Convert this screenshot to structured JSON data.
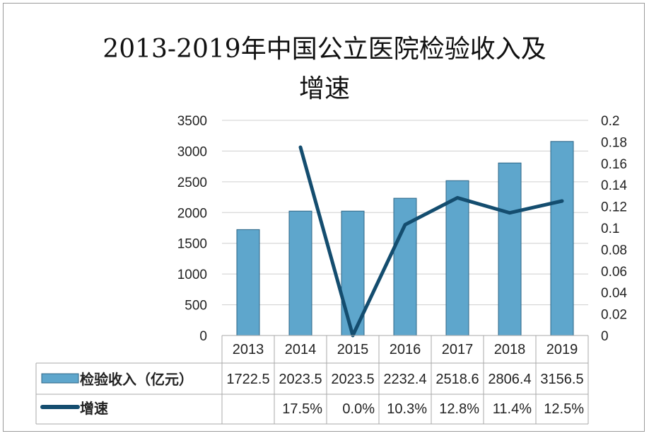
{
  "chart_data": {
    "type": "bar+line",
    "title_line1": "2013-2019年中国公立医院检验收入及",
    "title_line2": "增速",
    "categories": [
      "2013",
      "2014",
      "2015",
      "2016",
      "2017",
      "2018",
      "2019"
    ],
    "series": [
      {
        "name": "检验收入（亿元）",
        "type": "bar",
        "axis": "left",
        "values": [
          1722.5,
          2023.5,
          2023.5,
          2232.4,
          2518.6,
          2806.4,
          3156.5
        ],
        "labels": [
          "1722.5",
          "2023.5",
          "2023.5",
          "2232.4",
          "2518.6",
          "2806.4",
          "3156.5"
        ],
        "color": "#5ea6cc"
      },
      {
        "name": "增速",
        "type": "line",
        "axis": "right",
        "values": [
          null,
          0.175,
          0.0,
          0.103,
          0.128,
          0.114,
          0.125
        ],
        "labels": [
          "",
          "17.5%",
          "0.0%",
          "10.3%",
          "12.8%",
          "11.4%",
          "12.5%"
        ],
        "color": "#144d6f"
      }
    ],
    "y_left": {
      "range": [
        0,
        3500
      ],
      "ticks": [
        "0",
        "500",
        "1000",
        "1500",
        "2000",
        "2500",
        "3000",
        "3500"
      ]
    },
    "y_right": {
      "range": [
        0,
        0.2
      ],
      "ticks": [
        "0",
        "0.02",
        "0.04",
        "0.06",
        "0.08",
        "0.1",
        "0.12",
        "0.14",
        "0.16",
        "0.18",
        "0.2"
      ]
    },
    "grid": true,
    "legend": "data-table"
  }
}
